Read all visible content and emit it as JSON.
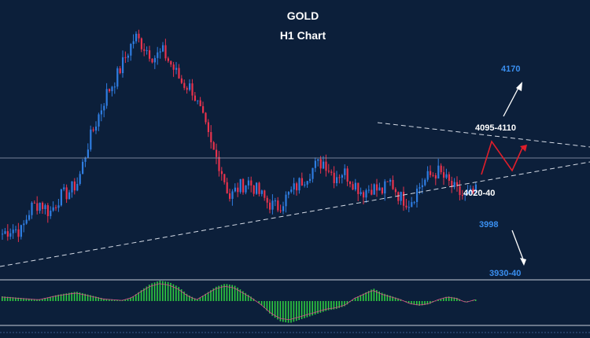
{
  "title": "GOLD",
  "subtitle": "H1 Chart",
  "colors": {
    "background": "#0c1f3a",
    "bull_candle": "#2f7de1",
    "bear_candle": "#e8334d",
    "projection": "#e01e2a",
    "trendline": "#d5dbe6",
    "level_text_white": "#ffffff",
    "level_text_blue": "#3a8ff0",
    "histogram": "#2ecc40",
    "signal_line": "#d94a8c"
  },
  "annotations": {
    "target_up": "4170",
    "resistance": "4095-4110",
    "support": "4020-40",
    "breakdown": "3998",
    "target_down": "3930-40"
  },
  "chart_data": {
    "type": "candlestick",
    "title": "GOLD",
    "subtitle": "H1 Chart",
    "symbol": "GOLD",
    "timeframe": "H1",
    "price_range": [
      3900,
      4400
    ],
    "close_path_approx": [
      3980,
      3990,
      3985,
      4030,
      4040,
      4020,
      4050,
      4060,
      4080,
      4150,
      4200,
      4250,
      4280,
      4320,
      4360,
      4340,
      4320,
      4330,
      4300,
      4270,
      4260,
      4210,
      4150,
      4110,
      4050,
      4070,
      4080,
      4060,
      4040,
      4030,
      4050,
      4070,
      4090,
      4110,
      4120,
      4090,
      4100,
      4080,
      4060,
      4070,
      4060,
      4080,
      4050,
      4040,
      4070,
      4090,
      4100,
      4080,
      4060,
      4050,
      4060
    ],
    "projection_path_approx": [
      4060,
      4100,
      4050,
      4090
    ],
    "levels": [
      {
        "label": "4170",
        "type": "upside target"
      },
      {
        "label": "4095-4110",
        "type": "resistance"
      },
      {
        "label": "4020-40",
        "type": "support"
      },
      {
        "label": "3998",
        "type": "breakdown level"
      },
      {
        "label": "3930-40",
        "type": "downside target"
      }
    ],
    "patterns": [
      "symmetrical triangle"
    ],
    "indicator": {
      "type": "oscillator histogram",
      "visible": true
    },
    "grid": false
  }
}
